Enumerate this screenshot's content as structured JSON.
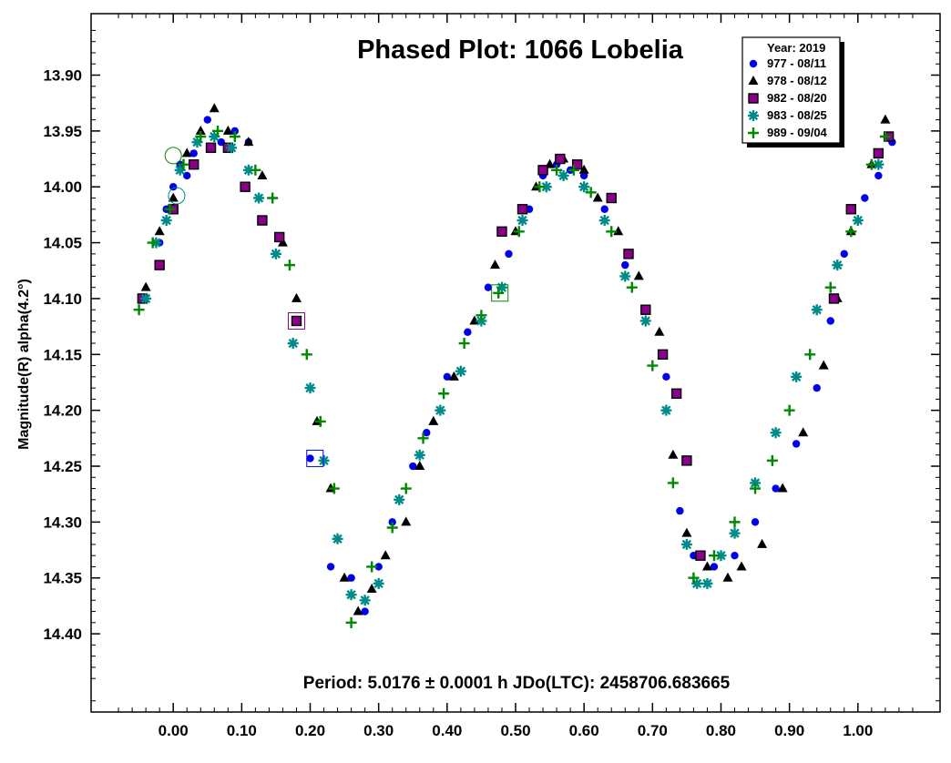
{
  "chart_data": {
    "type": "scatter",
    "title": "Phased Plot: 1066 Lobelia",
    "ylabel": "Magnitude(R) alpha(4.2°)",
    "xlabel": "",
    "footer": "Period: 5.0176 ± 0.0001 h  JDo(LTC): 2458706.683665",
    "xlim": [
      -0.12,
      1.12
    ],
    "ylim": [
      14.47,
      13.845
    ],
    "y_inverted": true,
    "grid": false,
    "x_ticks": [
      "0.00",
      "0.10",
      "0.20",
      "0.30",
      "0.40",
      "0.50",
      "0.60",
      "0.70",
      "0.80",
      "0.90",
      "1.00"
    ],
    "y_ticks": [
      "13.90",
      "13.95",
      "14.00",
      "14.05",
      "14.10",
      "14.15",
      "14.20",
      "14.25",
      "14.30",
      "14.35",
      "14.40"
    ],
    "legend": {
      "placement": "top-right",
      "title": "Year: 2019",
      "entries": [
        {
          "label": "977 - 08/11",
          "marker": "circle",
          "color": "#0000ee"
        },
        {
          "label": "978 - 08/12",
          "marker": "triangle",
          "color": "#000000"
        },
        {
          "label": "982 - 08/20",
          "marker": "square",
          "color": "#8b008b"
        },
        {
          "label": "983 - 08/25",
          "marker": "asterisk",
          "color": "#008b8b"
        },
        {
          "label": "989 - 09/04",
          "marker": "plus",
          "color": "#008800"
        }
      ]
    },
    "series": [
      {
        "name": "977 - 08/11",
        "marker": "circle",
        "color": "#0000ee",
        "x": [
          -0.02,
          -0.01,
          0.0,
          0.01,
          0.02,
          0.03,
          0.05,
          0.07,
          0.09,
          0.11,
          0.2,
          0.23,
          0.26,
          0.28,
          0.3,
          0.32,
          0.35,
          0.37,
          0.4,
          0.43,
          0.46,
          0.49,
          0.52,
          0.54,
          0.56,
          0.58,
          0.6,
          0.63,
          0.66,
          0.69,
          0.72,
          0.74,
          0.76,
          0.79,
          0.82,
          0.85,
          0.88,
          0.91,
          0.94,
          0.96,
          0.98,
          1.01,
          1.03,
          1.05
        ],
        "y": [
          14.05,
          14.02,
          14.0,
          13.98,
          13.99,
          13.97,
          13.94,
          13.96,
          13.95,
          13.96,
          14.243,
          14.34,
          14.35,
          14.38,
          14.34,
          14.3,
          14.25,
          14.22,
          14.17,
          14.13,
          14.09,
          14.06,
          14.02,
          13.99,
          13.98,
          13.985,
          13.99,
          14.02,
          14.07,
          14.11,
          14.17,
          14.29,
          14.33,
          14.34,
          14.33,
          14.3,
          14.27,
          14.23,
          14.18,
          14.12,
          14.06,
          14.01,
          13.99,
          13.96
        ]
      },
      {
        "name": "978 - 08/12",
        "marker": "triangle",
        "color": "#000000",
        "x": [
          -0.04,
          -0.02,
          0.0,
          0.02,
          0.04,
          0.06,
          0.08,
          0.11,
          0.13,
          0.16,
          0.18,
          0.21,
          0.23,
          0.25,
          0.27,
          0.29,
          0.31,
          0.34,
          0.36,
          0.38,
          0.41,
          0.44,
          0.47,
          0.5,
          0.53,
          0.55,
          0.57,
          0.6,
          0.62,
          0.65,
          0.68,
          0.71,
          0.73,
          0.75,
          0.78,
          0.81,
          0.83,
          0.86,
          0.89,
          0.92,
          0.95,
          0.97,
          0.99,
          1.02,
          1.04
        ],
        "y": [
          14.09,
          14.04,
          14.01,
          13.97,
          13.95,
          13.93,
          13.95,
          13.96,
          13.99,
          14.05,
          14.1,
          14.21,
          14.27,
          14.35,
          14.38,
          14.36,
          14.33,
          14.3,
          14.25,
          14.21,
          14.17,
          14.12,
          14.07,
          14.04,
          14.0,
          13.98,
          13.975,
          13.985,
          14.01,
          14.04,
          14.08,
          14.13,
          14.24,
          14.31,
          14.34,
          14.35,
          14.34,
          14.32,
          14.27,
          14.22,
          14.16,
          14.1,
          14.04,
          13.98,
          13.94
        ]
      },
      {
        "name": "982 - 08/20",
        "marker": "square",
        "color": "#8b008b",
        "x": [
          -0.045,
          -0.02,
          0.0,
          0.03,
          0.055,
          0.08,
          0.105,
          0.13,
          0.155,
          0.18,
          0.48,
          0.51,
          0.54,
          0.565,
          0.59,
          0.64,
          0.665,
          0.69,
          0.715,
          0.735,
          0.75,
          0.77,
          0.965,
          0.99,
          1.03,
          1.045
        ],
        "y": [
          14.1,
          14.07,
          14.02,
          13.98,
          13.965,
          13.965,
          14.0,
          14.03,
          14.045,
          14.12,
          14.04,
          14.02,
          13.985,
          13.975,
          13.98,
          14.01,
          14.06,
          14.11,
          14.15,
          14.185,
          14.245,
          14.33,
          14.1,
          14.02,
          13.97,
          13.955
        ],
        "outlined": [
          false,
          false,
          false,
          false,
          false,
          false,
          false,
          false,
          false,
          true,
          false,
          false,
          false,
          false,
          false,
          false,
          false,
          false,
          false,
          false,
          false,
          false,
          false,
          false,
          false,
          false
        ]
      },
      {
        "name": "983 - 08/25",
        "marker": "asterisk",
        "color": "#008b8b",
        "x": [
          -0.04,
          -0.025,
          -0.01,
          0.01,
          0.035,
          0.06,
          0.085,
          0.11,
          0.125,
          0.15,
          0.175,
          0.2,
          0.22,
          0.24,
          0.26,
          0.28,
          0.3,
          0.33,
          0.36,
          0.39,
          0.42,
          0.45,
          0.48,
          0.51,
          0.545,
          0.57,
          0.6,
          0.63,
          0.66,
          0.69,
          0.72,
          0.75,
          0.765,
          0.78,
          0.8,
          0.82,
          0.85,
          0.88,
          0.91,
          0.94,
          0.97,
          1.0,
          1.03
        ],
        "y": [
          14.1,
          14.05,
          14.03,
          13.985,
          13.96,
          13.955,
          13.965,
          13.985,
          14.01,
          14.06,
          14.14,
          14.18,
          14.245,
          14.315,
          14.365,
          14.37,
          14.355,
          14.28,
          14.24,
          14.2,
          14.165,
          14.12,
          14.09,
          14.03,
          14.0,
          13.99,
          14.0,
          14.03,
          14.08,
          14.12,
          14.2,
          14.32,
          14.355,
          14.355,
          14.33,
          14.31,
          14.265,
          14.22,
          14.17,
          14.11,
          14.07,
          14.03,
          13.98
        ]
      },
      {
        "name": "989 - 09/04",
        "marker": "plus",
        "color": "#008800",
        "x": [
          -0.05,
          -0.03,
          -0.005,
          0.015,
          0.04,
          0.065,
          0.09,
          0.12,
          0.145,
          0.17,
          0.195,
          0.215,
          0.235,
          0.26,
          0.29,
          0.32,
          0.34,
          0.365,
          0.395,
          0.425,
          0.45,
          0.475,
          0.505,
          0.535,
          0.56,
          0.585,
          0.61,
          0.64,
          0.67,
          0.7,
          0.73,
          0.76,
          0.79,
          0.82,
          0.85,
          0.875,
          0.9,
          0.93,
          0.96,
          0.99,
          1.02,
          1.04
        ],
        "y": [
          14.11,
          14.05,
          14.02,
          13.98,
          13.955,
          13.95,
          13.955,
          13.985,
          14.01,
          14.07,
          14.15,
          14.21,
          14.27,
          14.39,
          14.34,
          14.305,
          14.27,
          14.225,
          14.185,
          14.14,
          14.115,
          14.095,
          14.04,
          14.0,
          13.985,
          13.985,
          14.005,
          14.04,
          14.09,
          14.16,
          14.265,
          14.35,
          14.33,
          14.3,
          14.27,
          14.245,
          14.2,
          14.15,
          14.09,
          14.04,
          13.98,
          13.955
        ]
      }
    ]
  }
}
